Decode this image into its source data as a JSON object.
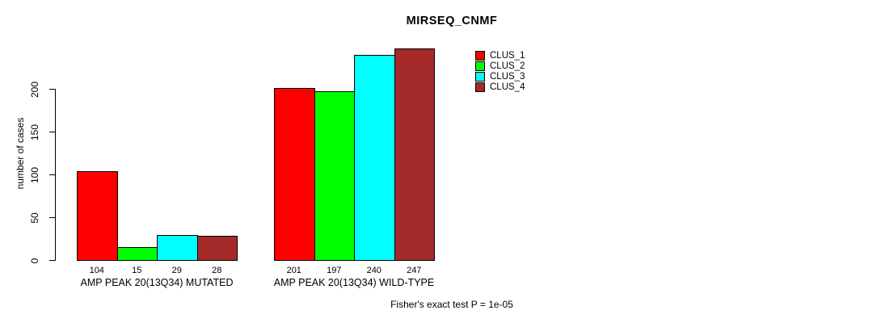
{
  "title": "MIRSEQ_CNMF",
  "footer": "Fisher's exact test P = 1e-05",
  "chart_data": {
    "type": "bar",
    "title": "MIRSEQ_CNMF",
    "xlabel": "",
    "ylabel": "number of cases",
    "categories": [
      "AMP PEAK 20(13Q34) MUTATED",
      "AMP PEAK 20(13Q34) WILD-TYPE"
    ],
    "series": [
      {
        "name": "CLUS_1",
        "color": "#ff0000",
        "values": [
          104,
          201
        ]
      },
      {
        "name": "CLUS_2",
        "color": "#00ff00",
        "values": [
          15,
          197
        ]
      },
      {
        "name": "CLUS_3",
        "color": "#00ffff",
        "values": [
          29,
          240
        ]
      },
      {
        "name": "CLUS_4",
        "color": "#a52a2a",
        "values": [
          28,
          247
        ]
      }
    ],
    "bar_value_labels": [
      [
        "104",
        "15",
        "29",
        "28"
      ],
      [
        "201",
        "197",
        "240",
        "247"
      ]
    ],
    "yticks": [
      0,
      50,
      100,
      150,
      200
    ],
    "ylim": [
      0,
      250
    ],
    "grid": false,
    "legend_position": "top-right",
    "legend_entries": [
      "CLUS_1",
      "CLUS_2",
      "CLUS_3",
      "CLUS_4"
    ],
    "annotation": "Fisher's exact test P = 1e-05"
  }
}
